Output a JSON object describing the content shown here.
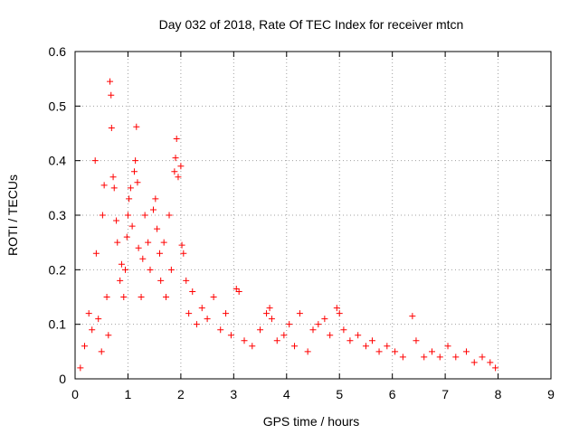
{
  "chart_data": {
    "type": "scatter",
    "title": "Day 032 of 2018, Rate Of TEC Index for receiver mtcn",
    "xlabel": "GPS time / hours",
    "ylabel": "ROTI / TECUs",
    "xlim": [
      0,
      9
    ],
    "ylim": [
      0,
      0.6
    ],
    "x_ticks": [
      "0",
      "1",
      "2",
      "3",
      "4",
      "5",
      "6",
      "7",
      "8",
      "9"
    ],
    "y_ticks": [
      "0",
      "0.1",
      "0.2",
      "0.3",
      "0.4",
      "0.5",
      "0.6"
    ],
    "grid": true,
    "marker": "+",
    "color": "#ff0000",
    "series": [
      {
        "name": "ROTI",
        "points": [
          [
            0.1,
            0.02
          ],
          [
            0.18,
            0.06
          ],
          [
            0.26,
            0.12
          ],
          [
            0.32,
            0.09
          ],
          [
            0.38,
            0.4
          ],
          [
            0.4,
            0.23
          ],
          [
            0.44,
            0.11
          ],
          [
            0.5,
            0.05
          ],
          [
            0.52,
            0.3
          ],
          [
            0.55,
            0.355
          ],
          [
            0.6,
            0.15
          ],
          [
            0.63,
            0.08
          ],
          [
            0.66,
            0.545
          ],
          [
            0.68,
            0.52
          ],
          [
            0.69,
            0.46
          ],
          [
            0.72,
            0.37
          ],
          [
            0.74,
            0.35
          ],
          [
            0.78,
            0.29
          ],
          [
            0.8,
            0.25
          ],
          [
            0.85,
            0.18
          ],
          [
            0.88,
            0.21
          ],
          [
            0.92,
            0.15
          ],
          [
            0.95,
            0.2
          ],
          [
            0.98,
            0.26
          ],
          [
            1.0,
            0.3
          ],
          [
            1.02,
            0.33
          ],
          [
            1.05,
            0.35
          ],
          [
            1.08,
            0.28
          ],
          [
            1.12,
            0.38
          ],
          [
            1.14,
            0.4
          ],
          [
            1.16,
            0.462
          ],
          [
            1.18,
            0.36
          ],
          [
            1.2,
            0.24
          ],
          [
            1.25,
            0.15
          ],
          [
            1.28,
            0.22
          ],
          [
            1.32,
            0.3
          ],
          [
            1.38,
            0.25
          ],
          [
            1.42,
            0.2
          ],
          [
            1.48,
            0.31
          ],
          [
            1.52,
            0.33
          ],
          [
            1.55,
            0.275
          ],
          [
            1.6,
            0.23
          ],
          [
            1.62,
            0.18
          ],
          [
            1.68,
            0.25
          ],
          [
            1.72,
            0.15
          ],
          [
            1.78,
            0.3
          ],
          [
            1.82,
            0.2
          ],
          [
            1.88,
            0.38
          ],
          [
            1.9,
            0.405
          ],
          [
            1.92,
            0.44
          ],
          [
            1.95,
            0.37
          ],
          [
            2.0,
            0.39
          ],
          [
            2.02,
            0.245
          ],
          [
            2.05,
            0.23
          ],
          [
            2.1,
            0.18
          ],
          [
            2.15,
            0.12
          ],
          [
            2.22,
            0.16
          ],
          [
            2.3,
            0.1
          ],
          [
            2.4,
            0.13
          ],
          [
            2.5,
            0.11
          ],
          [
            2.62,
            0.15
          ],
          [
            2.75,
            0.09
          ],
          [
            2.85,
            0.12
          ],
          [
            2.95,
            0.08
          ],
          [
            3.05,
            0.165
          ],
          [
            3.1,
            0.16
          ],
          [
            3.2,
            0.07
          ],
          [
            3.35,
            0.06
          ],
          [
            3.5,
            0.09
          ],
          [
            3.62,
            0.12
          ],
          [
            3.68,
            0.13
          ],
          [
            3.72,
            0.11
          ],
          [
            3.82,
            0.07
          ],
          [
            3.95,
            0.08
          ],
          [
            4.05,
            0.1
          ],
          [
            4.15,
            0.06
          ],
          [
            4.25,
            0.12
          ],
          [
            4.4,
            0.05
          ],
          [
            4.5,
            0.09
          ],
          [
            4.6,
            0.1
          ],
          [
            4.72,
            0.11
          ],
          [
            4.82,
            0.08
          ],
          [
            4.95,
            0.13
          ],
          [
            5.0,
            0.12
          ],
          [
            5.08,
            0.09
          ],
          [
            5.2,
            0.07
          ],
          [
            5.35,
            0.08
          ],
          [
            5.5,
            0.06
          ],
          [
            5.62,
            0.07
          ],
          [
            5.75,
            0.05
          ],
          [
            5.9,
            0.06
          ],
          [
            6.05,
            0.05
          ],
          [
            6.2,
            0.04
          ],
          [
            6.38,
            0.115
          ],
          [
            6.45,
            0.07
          ],
          [
            6.6,
            0.04
          ],
          [
            6.75,
            0.05
          ],
          [
            6.9,
            0.04
          ],
          [
            7.05,
            0.06
          ],
          [
            7.2,
            0.04
          ],
          [
            7.4,
            0.05
          ],
          [
            7.55,
            0.03
          ],
          [
            7.7,
            0.04
          ],
          [
            7.85,
            0.03
          ],
          [
            7.95,
            0.02
          ]
        ]
      }
    ]
  }
}
